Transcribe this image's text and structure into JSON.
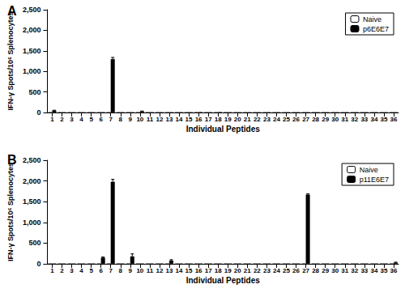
{
  "chart_data": [
    {
      "type": "bar",
      "title": "A",
      "x_label": "Individual Peptides",
      "y_label": "IFN-γ Spots/10⁶ Splenocytes",
      "categories": [
        "1",
        "2",
        "3",
        "4",
        "5",
        "6",
        "7",
        "8",
        "9",
        "10",
        "11",
        "12",
        "13",
        "14",
        "15",
        "16",
        "17",
        "18",
        "19",
        "20",
        "21",
        "22",
        "23",
        "24",
        "25",
        "26",
        "27",
        "28",
        "29",
        "30",
        "31",
        "32",
        "33",
        "34",
        "35",
        "36"
      ],
      "series": [
        {
          "name": "Naive",
          "color": "#ffffff",
          "values": [
            0,
            0,
            0,
            0,
            0,
            0,
            0,
            0,
            0,
            0,
            0,
            0,
            0,
            0,
            0,
            0,
            0,
            0,
            0,
            0,
            0,
            0,
            0,
            0,
            0,
            0,
            0,
            0,
            0,
            0,
            0,
            0,
            0,
            0,
            0,
            0
          ],
          "errors": [
            0,
            0,
            0,
            0,
            0,
            0,
            0,
            0,
            0,
            0,
            0,
            0,
            0,
            0,
            0,
            0,
            0,
            0,
            0,
            0,
            0,
            0,
            0,
            0,
            0,
            0,
            0,
            0,
            0,
            0,
            0,
            0,
            0,
            0,
            0,
            0
          ]
        },
        {
          "name": "p6E6E7",
          "color": "#000000",
          "values": [
            50,
            0,
            0,
            0,
            0,
            0,
            1300,
            0,
            0,
            30,
            0,
            0,
            0,
            0,
            0,
            10,
            0,
            10,
            0,
            0,
            0,
            0,
            0,
            0,
            0,
            0,
            0,
            0,
            0,
            0,
            0,
            0,
            0,
            0,
            0,
            0
          ],
          "errors": [
            5,
            0,
            0,
            0,
            0,
            0,
            40,
            0,
            0,
            5,
            0,
            0,
            0,
            0,
            0,
            0,
            0,
            0,
            0,
            0,
            0,
            0,
            0,
            0,
            0,
            0,
            0,
            0,
            0,
            0,
            0,
            0,
            0,
            0,
            0,
            0
          ]
        }
      ],
      "ylim": [
        0,
        2500
      ],
      "yticks": [
        0,
        500,
        1000,
        1500,
        2000,
        2500
      ],
      "grid": false,
      "legend": "top-right"
    },
    {
      "type": "bar",
      "title": "B",
      "x_label": "Individual Peptides",
      "y_label": "IFN-γ Spots/10⁶ Splenocytes",
      "categories": [
        "1",
        "2",
        "3",
        "4",
        "5",
        "6",
        "7",
        "8",
        "9",
        "10",
        "11",
        "12",
        "13",
        "14",
        "15",
        "16",
        "17",
        "18",
        "19",
        "20",
        "21",
        "22",
        "23",
        "24",
        "25",
        "26",
        "27",
        "28",
        "29",
        "30",
        "31",
        "32",
        "33",
        "34",
        "35",
        "36"
      ],
      "series": [
        {
          "name": "Naive",
          "color": "#ffffff",
          "values": [
            0,
            0,
            0,
            0,
            0,
            0,
            0,
            0,
            0,
            0,
            0,
            0,
            0,
            0,
            0,
            0,
            0,
            0,
            0,
            0,
            0,
            0,
            0,
            0,
            0,
            0,
            0,
            0,
            0,
            0,
            0,
            0,
            0,
            0,
            0,
            0
          ],
          "errors": [
            0,
            0,
            0,
            0,
            0,
            0,
            0,
            0,
            0,
            0,
            0,
            0,
            0,
            0,
            0,
            0,
            0,
            0,
            0,
            0,
            0,
            0,
            0,
            0,
            0,
            0,
            0,
            0,
            0,
            0,
            0,
            0,
            0,
            0,
            0,
            0
          ]
        },
        {
          "name": "p11E6E7",
          "color": "#000000",
          "values": [
            0,
            0,
            0,
            0,
            0,
            150,
            1980,
            0,
            180,
            0,
            0,
            0,
            80,
            0,
            0,
            0,
            0,
            0,
            0,
            0,
            0,
            0,
            0,
            0,
            0,
            0,
            1670,
            0,
            0,
            0,
            0,
            0,
            0,
            0,
            0,
            30
          ],
          "errors": [
            0,
            0,
            0,
            0,
            0,
            15,
            60,
            0,
            60,
            0,
            0,
            0,
            20,
            0,
            0,
            0,
            0,
            0,
            0,
            0,
            0,
            0,
            0,
            0,
            0,
            0,
            20,
            0,
            0,
            0,
            0,
            0,
            0,
            0,
            0,
            10
          ]
        }
      ],
      "ylim": [
        0,
        2500
      ],
      "yticks": [
        0,
        500,
        1000,
        1500,
        2000,
        2500
      ],
      "grid": false,
      "legend": "top-right"
    }
  ]
}
